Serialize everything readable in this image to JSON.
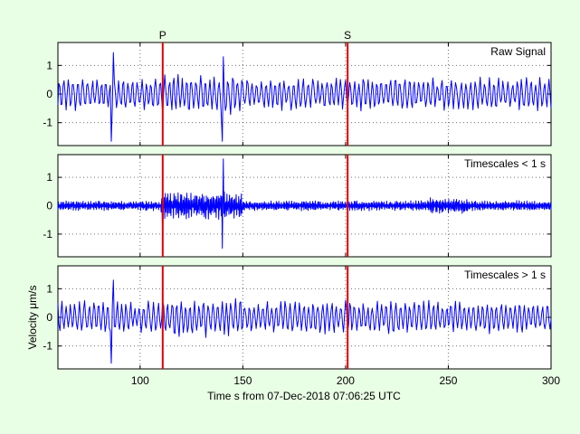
{
  "chart_data": {
    "type": "line",
    "xlabel": "Time s from 07-Dec-2018 07:06:25 UTC",
    "ylabel": "Velocity μm/s",
    "xlim": [
      60,
      300
    ],
    "xticks": [
      100,
      150,
      200,
      250,
      300
    ],
    "colors": {
      "trace": "#0000ff",
      "marker": "#e00000",
      "background": "#e9ffe5",
      "axes": "#ffffff"
    },
    "grid": true,
    "markers": [
      {
        "label": "P",
        "x": 111
      },
      {
        "label": "S",
        "x": 201
      }
    ],
    "panels": [
      {
        "title": "Raw Signal",
        "ylim": [
          -1.8,
          1.8
        ],
        "yticks": [
          -1,
          0,
          1
        ],
        "signal": {
          "sample_interval_s": 0.5,
          "peak_min": -1.65,
          "peak_max": 1.45,
          "typical_amplitude": 0.5,
          "events": [
            {
              "x": 86,
              "value": -1.65
            },
            {
              "x": 87,
              "value": 1.45
            },
            {
              "x": 140,
              "value": -1.65
            },
            {
              "x": 140.5,
              "value": 1.3
            }
          ]
        }
      },
      {
        "title": "Timescales < 1 s",
        "ylim": [
          -1.8,
          1.8
        ],
        "yticks": [
          -1,
          0,
          1
        ],
        "signal": {
          "sample_interval_s": 0.25,
          "peak_min": -1.5,
          "peak_max": 1.65,
          "typical_amplitude": 0.15,
          "events": [
            {
              "x": 111,
              "value": -1.0
            },
            {
              "x": 140,
              "value": -1.5
            },
            {
              "x": 140.5,
              "value": 1.65
            }
          ]
        }
      },
      {
        "title": "Timescales > 1 s",
        "ylim": [
          -1.8,
          1.8
        ],
        "yticks": [
          -1,
          0,
          1
        ],
        "signal": {
          "sample_interval_s": 0.5,
          "peak_min": -1.6,
          "peak_max": 1.3,
          "typical_amplitude": 0.5,
          "events": [
            {
              "x": 86,
              "value": -1.6
            },
            {
              "x": 87,
              "value": 1.3
            }
          ]
        }
      }
    ]
  }
}
